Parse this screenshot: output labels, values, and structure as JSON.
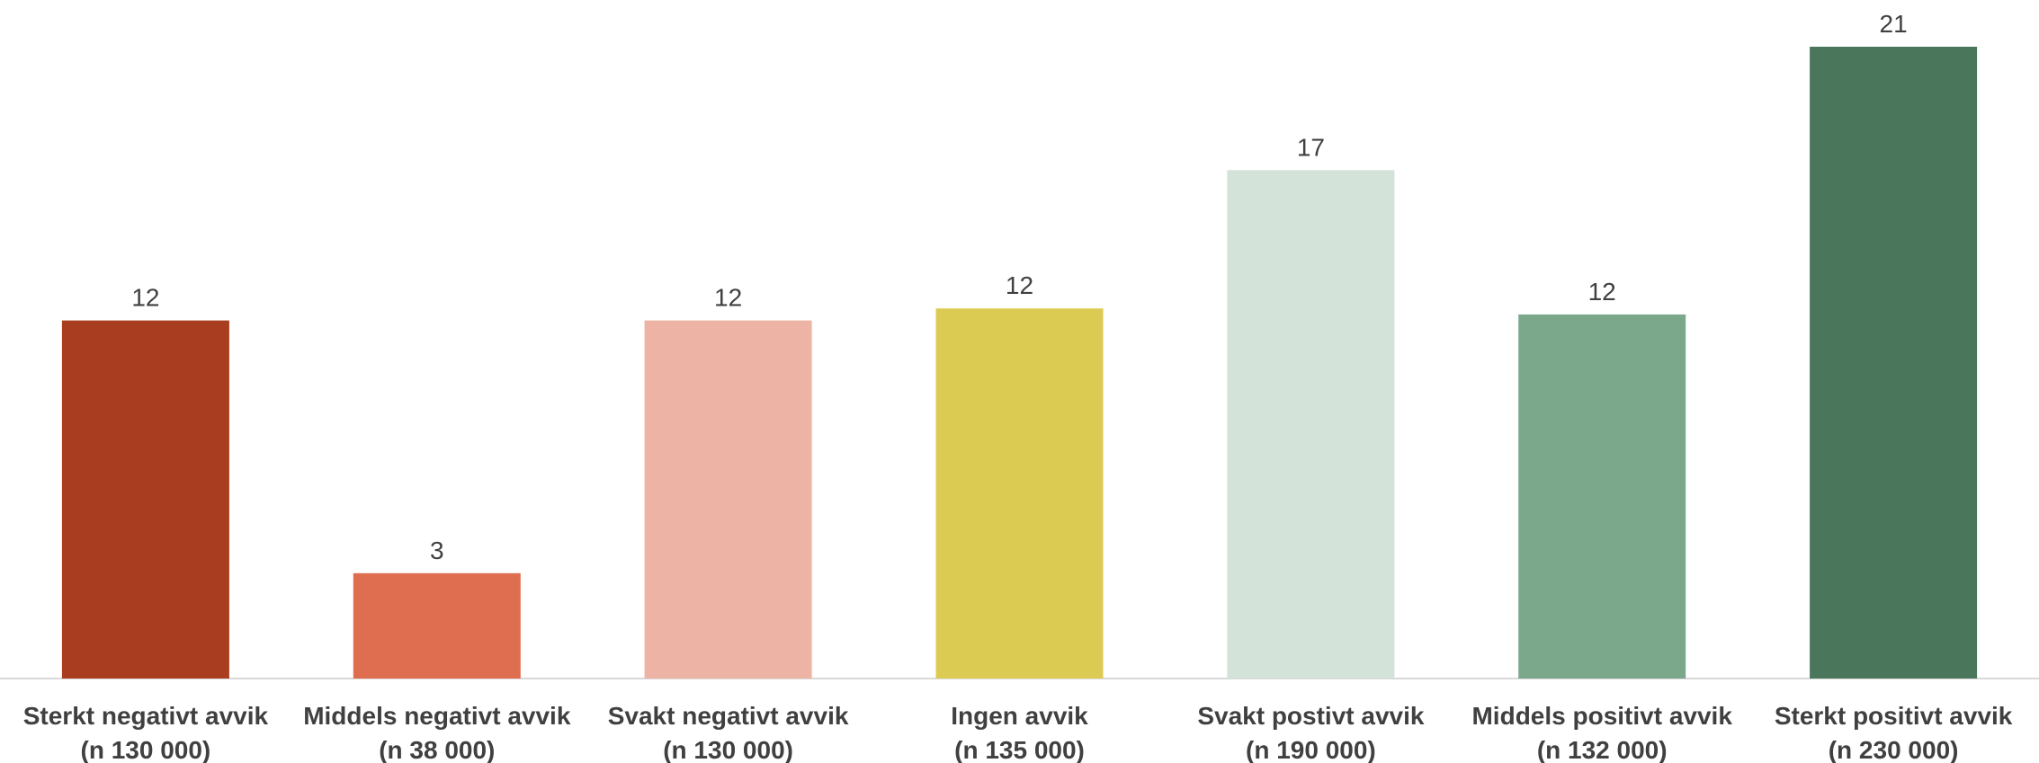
{
  "chart_data": {
    "type": "bar",
    "categories": [
      [
        "Sterkt negativt avvik",
        "(n 130 000)"
      ],
      [
        "Middels negativt avvik",
        "(n 38 000)"
      ],
      [
        "Svakt negativt avvik",
        "(n 130 000)"
      ],
      [
        "Ingen avvik",
        "(n 135 000)"
      ],
      [
        "Svakt postivt avvik",
        "(n 190 000)"
      ],
      [
        "Middels positivt avvik",
        "(n 132 000)"
      ],
      [
        "Sterkt positivt avvik",
        "(n 230 000)"
      ]
    ],
    "values": [
      11.9,
      3.5,
      11.9,
      12.3,
      16.9,
      12.1,
      21.0
    ],
    "data_labels": [
      "12",
      "3",
      "12",
      "12",
      "17",
      "12",
      "21"
    ],
    "colors": [
      "#a83d20",
      "#df6d4f",
      "#edb4a5",
      "#dccb53",
      "#d3e3d9",
      "#7ba88b",
      "#4a775b"
    ],
    "title": "",
    "xlabel": "",
    "ylabel": "",
    "ylim": [
      0,
      21
    ],
    "grid": false,
    "legend": "none"
  }
}
